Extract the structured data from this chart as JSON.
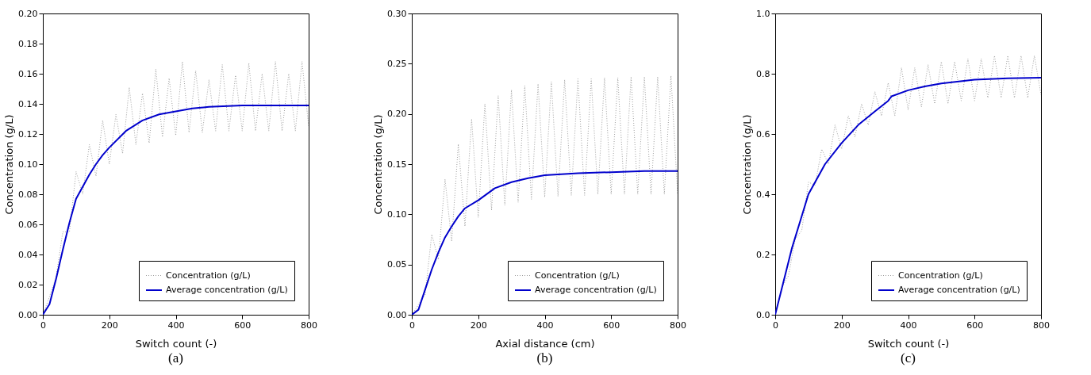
{
  "chart_data": [
    {
      "type": "line",
      "xlabel": "Switch count (-)",
      "ylabel": "Concentration (g/L)",
      "annotations": [
        "(a)"
      ],
      "legend": "bottom right",
      "grid": false,
      "xlim": [
        0,
        800
      ],
      "xticks": [
        0,
        200,
        400,
        600,
        800
      ],
      "ylim": [
        0,
        0.2
      ],
      "yticks": [
        {
          "value": 0,
          "label": "0.00"
        },
        {
          "value": 0.02,
          "label": "0.02"
        },
        {
          "value": 0.04,
          "label": "0.04"
        },
        {
          "value": 0.06,
          "label": "0.06"
        },
        {
          "value": 0.08,
          "label": "0.08"
        },
        {
          "value": 0.1,
          "label": "0.10"
        },
        {
          "value": 0.12,
          "label": "0.12"
        },
        {
          "value": 0.14,
          "label": "0.14"
        },
        {
          "value": 0.16,
          "label": "0.16"
        },
        {
          "value": 0.18,
          "label": "0.18"
        },
        {
          "value": 0.2,
          "label": "0.20"
        }
      ],
      "series": [
        {
          "name": "Concentration (g/L)",
          "color": "#a0a0a0",
          "line_style": "dotted",
          "x": [
            0,
            20,
            40,
            60,
            80,
            100,
            120,
            140,
            160,
            180,
            200,
            220,
            240,
            260,
            280,
            300,
            320,
            340,
            360,
            380,
            400,
            420,
            440,
            460,
            480,
            500,
            520,
            540,
            560,
            580,
            600,
            620,
            640,
            660,
            680,
            700,
            720,
            740,
            760,
            780,
            800
          ],
          "values": [
            0,
            0.012,
            0.025,
            0.055,
            0.055,
            0.095,
            0.08,
            0.113,
            0.092,
            0.129,
            0.1,
            0.133,
            0.107,
            0.151,
            0.113,
            0.147,
            0.114,
            0.163,
            0.118,
            0.157,
            0.119,
            0.168,
            0.121,
            0.162,
            0.121,
            0.156,
            0.122,
            0.166,
            0.122,
            0.159,
            0.122,
            0.167,
            0.122,
            0.16,
            0.122,
            0.168,
            0.122,
            0.16,
            0.122,
            0.168,
            0.125
          ]
        },
        {
          "name": "Average concentration (g/L)",
          "color": "#0000cc",
          "line_style": "solid",
          "x": [
            0,
            20,
            40,
            60,
            80,
            100,
            120,
            140,
            160,
            180,
            200,
            250,
            300,
            350,
            400,
            450,
            500,
            600,
            700,
            800
          ],
          "values": [
            0,
            0.007,
            0.024,
            0.043,
            0.061,
            0.077,
            0.085,
            0.093,
            0.1,
            0.106,
            0.111,
            0.122,
            0.129,
            0.133,
            0.135,
            0.137,
            0.138,
            0.139,
            0.139,
            0.139
          ]
        }
      ]
    },
    {
      "type": "line",
      "xlabel": "Axial distance (cm)",
      "ylabel": "Concentration (g/L)",
      "annotations": [
        "(b)"
      ],
      "legend": "bottom right",
      "grid": false,
      "xlim": [
        0,
        800
      ],
      "xticks": [
        0,
        200,
        400,
        600,
        800
      ],
      "ylim": [
        0,
        0.3
      ],
      "yticks": [
        {
          "value": 0,
          "label": "0.00"
        },
        0.05,
        {
          "value": 0.1,
          "label": "0.10"
        },
        0.15,
        {
          "value": 0.2,
          "label": "0.20"
        },
        0.25,
        {
          "value": 0.3,
          "label": "0.30"
        }
      ],
      "series": [
        {
          "name": "Concentration (g/L)",
          "color": "#a0a0a0",
          "line_style": "dotted",
          "x": [
            0,
            20,
            40,
            60,
            80,
            100,
            120,
            140,
            160,
            180,
            200,
            220,
            240,
            260,
            280,
            300,
            320,
            340,
            360,
            380,
            400,
            420,
            440,
            460,
            480,
            500,
            520,
            540,
            560,
            580,
            600,
            620,
            640,
            660,
            680,
            700,
            720,
            740,
            760,
            780,
            800
          ],
          "values": [
            0,
            0.01,
            0.02,
            0.08,
            0.055,
            0.135,
            0.073,
            0.17,
            0.088,
            0.195,
            0.097,
            0.21,
            0.104,
            0.218,
            0.109,
            0.224,
            0.112,
            0.228,
            0.115,
            0.23,
            0.117,
            0.232,
            0.118,
            0.234,
            0.119,
            0.235,
            0.119,
            0.235,
            0.12,
            0.236,
            0.12,
            0.236,
            0.12,
            0.237,
            0.12,
            0.237,
            0.12,
            0.237,
            0.12,
            0.238,
            0.12
          ]
        },
        {
          "name": "Average concentration (g/L)",
          "color": "#0000cc",
          "line_style": "solid",
          "x": [
            0,
            20,
            40,
            60,
            80,
            100,
            120,
            140,
            160,
            200,
            250,
            300,
            350,
            400,
            500,
            600,
            700,
            800
          ],
          "values": [
            0,
            0.005,
            0.025,
            0.045,
            0.062,
            0.077,
            0.088,
            0.098,
            0.106,
            0.114,
            0.126,
            0.132,
            0.136,
            0.139,
            0.141,
            0.142,
            0.143,
            0.143
          ]
        }
      ]
    },
    {
      "type": "line",
      "xlabel": "Switch count (-)",
      "ylabel": "Concentration (g/L)",
      "annotations": [
        "(c)"
      ],
      "legend": "bottom right",
      "grid": false,
      "xlim": [
        0,
        800
      ],
      "xticks": [
        0,
        200,
        400,
        600,
        800
      ],
      "ylim": [
        0,
        1
      ],
      "yticks": [
        {
          "value": 0,
          "label": "0.0"
        },
        0.2,
        0.4,
        0.6,
        0.8,
        {
          "value": 1,
          "label": "1.0"
        }
      ],
      "series": [
        {
          "name": "Concentration (g/L)",
          "color": "#a0a0a0",
          "line_style": "dotted",
          "x": [
            0,
            20,
            40,
            60,
            80,
            100,
            120,
            140,
            160,
            180,
            200,
            220,
            240,
            260,
            280,
            300,
            320,
            340,
            360,
            380,
            400,
            420,
            440,
            460,
            480,
            500,
            520,
            540,
            560,
            580,
            600,
            620,
            640,
            660,
            680,
            700,
            720,
            740,
            760,
            780,
            800
          ],
          "values": [
            0,
            0.09,
            0.13,
            0.25,
            0.28,
            0.44,
            0.43,
            0.55,
            0.5,
            0.63,
            0.55,
            0.66,
            0.59,
            0.7,
            0.63,
            0.74,
            0.66,
            0.77,
            0.66,
            0.82,
            0.68,
            0.82,
            0.69,
            0.83,
            0.7,
            0.84,
            0.7,
            0.84,
            0.71,
            0.85,
            0.71,
            0.85,
            0.72,
            0.86,
            0.72,
            0.86,
            0.72,
            0.86,
            0.72,
            0.86,
            0.73
          ]
        },
        {
          "name": "Average concentration (g/L)",
          "color": "#0000cc",
          "line_style": "solid",
          "x": [
            0,
            25,
            50,
            75,
            100,
            150,
            200,
            250,
            300,
            340,
            350,
            400,
            450,
            500,
            600,
            700,
            800
          ],
          "values": [
            0,
            0.11,
            0.22,
            0.31,
            0.4,
            0.5,
            0.57,
            0.63,
            0.675,
            0.71,
            0.725,
            0.745,
            0.758,
            0.768,
            0.78,
            0.785,
            0.787
          ]
        }
      ]
    }
  ]
}
